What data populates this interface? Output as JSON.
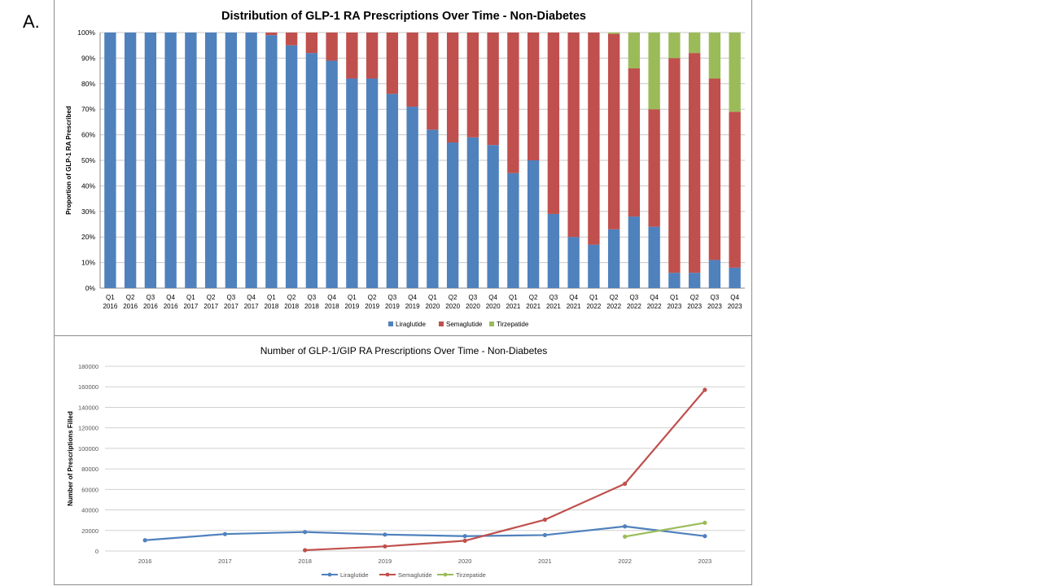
{
  "panel_label": "A.",
  "chart_data": [
    {
      "type": "bar",
      "stacked": true,
      "title": "Distribution of GLP-1 RA Prescriptions Over Time - Non-Diabetes",
      "ylabel": "Proportion of GLP-1 RA Prescribed",
      "xlabel": "",
      "ylim": [
        0,
        100
      ],
      "y_ticks": [
        "0%",
        "10%",
        "20%",
        "30%",
        "40%",
        "50%",
        "60%",
        "70%",
        "80%",
        "90%",
        "100%"
      ],
      "categories": [
        [
          "Q1",
          "2016"
        ],
        [
          "Q2",
          "2016"
        ],
        [
          "Q3",
          "2016"
        ],
        [
          "Q4",
          "2016"
        ],
        [
          "Q1",
          "2017"
        ],
        [
          "Q2",
          "2017"
        ],
        [
          "Q3",
          "2017"
        ],
        [
          "Q4",
          "2017"
        ],
        [
          "Q1",
          "2018"
        ],
        [
          "Q2",
          "2018"
        ],
        [
          "Q3",
          "2018"
        ],
        [
          "Q4",
          "2018"
        ],
        [
          "Q1",
          "2019"
        ],
        [
          "Q2",
          "2019"
        ],
        [
          "Q3",
          "2019"
        ],
        [
          "Q4",
          "2019"
        ],
        [
          "Q1",
          "2020"
        ],
        [
          "Q2",
          "2020"
        ],
        [
          "Q3",
          "2020"
        ],
        [
          "Q4",
          "2020"
        ],
        [
          "Q1",
          "2021"
        ],
        [
          "Q2",
          "2021"
        ],
        [
          "Q3",
          "2021"
        ],
        [
          "Q4",
          "2021"
        ],
        [
          "Q1",
          "2022"
        ],
        [
          "Q2",
          "2022"
        ],
        [
          "Q3",
          "2022"
        ],
        [
          "Q4",
          "2022"
        ],
        [
          "Q1",
          "2023"
        ],
        [
          "Q2",
          "2023"
        ],
        [
          "Q3",
          "2023"
        ],
        [
          "Q4",
          "2023"
        ]
      ],
      "series": [
        {
          "name": "Liraglutide",
          "color": "#4f81bd",
          "values": [
            100,
            100,
            100,
            100,
            100,
            100,
            100,
            100,
            99,
            95,
            92,
            89,
            82,
            82,
            76,
            71,
            62,
            57,
            59,
            56,
            45,
            50,
            29,
            20,
            17,
            23,
            28,
            24,
            6,
            6,
            11,
            8
          ]
        },
        {
          "name": "Semaglutide",
          "color": "#c0504d",
          "values": [
            0,
            0,
            0,
            0,
            0,
            0,
            0,
            0,
            1,
            5,
            8,
            11,
            18,
            18,
            24,
            29,
            38,
            43,
            41,
            44,
            55,
            50,
            71,
            80,
            83,
            76.5,
            58,
            46,
            84,
            86,
            71,
            61
          ]
        },
        {
          "name": "Tirzepatide",
          "color": "#9bbb59",
          "values": [
            0,
            0,
            0,
            0,
            0,
            0,
            0,
            0,
            0,
            0,
            0,
            0,
            0,
            0,
            0,
            0,
            0,
            0,
            0,
            0,
            0,
            0,
            0,
            0,
            0,
            0.5,
            14,
            30,
            10,
            8,
            18,
            31
          ]
        }
      ],
      "grid": true,
      "legend_position": "bottom"
    },
    {
      "type": "line",
      "title": "Number of GLP-1/GIP RA Prescriptions Over Time - Non-Diabetes",
      "ylabel": "Number of Prescriptions Filled",
      "xlabel": "",
      "ylim": [
        0,
        180000
      ],
      "y_ticks": [
        "0",
        "20000",
        "40000",
        "60000",
        "80000",
        "100000",
        "120000",
        "140000",
        "160000",
        "180000"
      ],
      "x": [
        "2016",
        "2017",
        "2018",
        "2019",
        "2020",
        "2021",
        "2022",
        "2023"
      ],
      "series": [
        {
          "name": "Liraglutide",
          "color": "#4f81bd",
          "values": [
            10500,
            16500,
            18500,
            16000,
            14500,
            15500,
            24000,
            14500
          ]
        },
        {
          "name": "Semaglutide",
          "color": "#c0504d",
          "values": [
            null,
            null,
            800,
            4500,
            10000,
            30500,
            65500,
            157000
          ]
        },
        {
          "name": "Tirzepatide",
          "color": "#9bbb59",
          "values": [
            null,
            null,
            null,
            null,
            null,
            null,
            14000,
            27500
          ]
        }
      ],
      "grid": true,
      "legend_position": "bottom"
    }
  ]
}
